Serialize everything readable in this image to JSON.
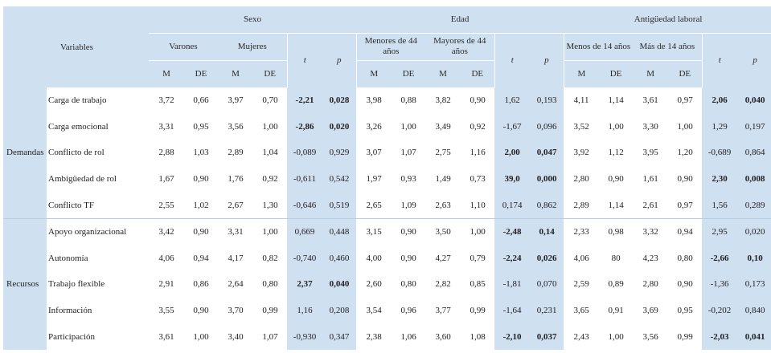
{
  "header": {
    "groups": {
      "sexo": "Sexo",
      "edad": "Edad",
      "antiguedad": "Antigüedad laboral"
    },
    "variables": "Variables",
    "sub": {
      "varones": "Varones",
      "mujeres": "Mujeres",
      "menores44": "Menores de 44 años",
      "mayores44": "Mayores de 44 años",
      "menos14": "Menos de 14 años",
      "mas14": "Más de 14 años"
    },
    "stat": {
      "m": "M",
      "de": "DE",
      "t": "t",
      "p": "p"
    }
  },
  "groups": {
    "demandas": "Demandas",
    "recursos": "Recursos"
  },
  "rows": [
    {
      "label": "Carga de trabajo",
      "v": [
        "3,72",
        "0,66",
        "3,97",
        "0,70",
        "-2,21",
        "0,028",
        "3,98",
        "0,88",
        "3,82",
        "0,90",
        "1,62",
        "0,193",
        "4,11",
        "1,14",
        "3,61",
        "0,97",
        "2,06",
        "0,040"
      ],
      "bold": [
        4,
        5,
        16,
        17
      ]
    },
    {
      "label": "Carga emocional",
      "v": [
        "3,31",
        "0,95",
        "3,56",
        "1,00",
        "-2,86",
        "0,020",
        "3,26",
        "1,00",
        "3,49",
        "0,92",
        "-1,67",
        "0,096",
        "3,52",
        "1,00",
        "3,30",
        "1,00",
        "1,29",
        "0,197"
      ],
      "bold": [
        4,
        5
      ]
    },
    {
      "label": "Conflicto de rol",
      "v": [
        "2,88",
        "1,03",
        "2,89",
        "1,04",
        "-0,089",
        "0,929",
        "3,07",
        "1,07",
        "2,75",
        "1,16",
        "2,00",
        "0,047",
        "3,92",
        "1,12",
        "3,95",
        "1,20",
        "-0,689",
        "0,864"
      ],
      "bold": [
        10,
        11
      ]
    },
    {
      "label": "Ambigüedad de rol",
      "v": [
        "1,67",
        "0,90",
        "1,76",
        "0,92",
        "-0,611",
        "0,542",
        "1,97",
        "0,93",
        "1,49",
        "0,73",
        "39,0",
        "0,000",
        "2,80",
        "0,90",
        "1,61",
        "0,90",
        "2,30",
        "0,008"
      ],
      "bold": [
        10,
        11,
        16,
        17
      ]
    },
    {
      "label": "Conflicto TF",
      "v": [
        "2,55",
        "1,02",
        "2,67",
        "1,30",
        "-0,646",
        "0,519",
        "2,65",
        "1,09",
        "2,63",
        "1,10",
        "0,174",
        "0,862",
        "2,89",
        "1,14",
        "2,61",
        "0,97",
        "1,56",
        "0,289"
      ],
      "bold": []
    },
    {
      "label": "Apoyo organizacional",
      "v": [
        "3,42",
        "0,90",
        "3,31",
        "1,00",
        "0,669",
        "0,448",
        "3,15",
        "0,90",
        "3,50",
        "1,00",
        "-2,48",
        "0,14",
        "2,33",
        "0,98",
        "3,32",
        "0,94",
        "2,95",
        "0,020"
      ],
      "bold": [
        10,
        11
      ]
    },
    {
      "label": "Autonomía",
      "v": [
        "4,06",
        "0,94",
        "4,17",
        "0,82",
        "-0,740",
        "0,460",
        "4,00",
        "0,90",
        "4,27",
        "0,79",
        "-2,24",
        "0,026",
        "4,06",
        "80",
        "4,23",
        "0,80",
        "-2,66",
        "0,10"
      ],
      "bold": [
        10,
        11,
        16,
        17
      ]
    },
    {
      "label": "Trabajo flexible",
      "v": [
        "2,91",
        "0,86",
        "2,64",
        "0,80",
        "2,37",
        "0,040",
        "2,60",
        "0,80",
        "2,82",
        "0,85",
        "-1,81",
        "0,070",
        "2,59",
        "0,89",
        "2,80",
        "0,90",
        "-1,36",
        "0,173"
      ],
      "bold": [
        4,
        5
      ]
    },
    {
      "label": "Información",
      "v": [
        "3,55",
        "0,90",
        "3,70",
        "0,99",
        "1,16",
        "0,208",
        "3,54",
        "0,96",
        "3,77",
        "0,99",
        "-1,64",
        "0,231",
        "3,65",
        "0,91",
        "3,69",
        "0,95",
        "-0,202",
        "0,840"
      ],
      "bold": []
    },
    {
      "label": "Participación",
      "v": [
        "3,61",
        "1,00",
        "3,40",
        "1,07",
        "-0,930",
        "0,347",
        "2,38",
        "1,06",
        "3,60",
        "1,08",
        "-2,10",
        "0,037",
        "2,43",
        "1,00",
        "3,56",
        "0,99",
        "-2,03",
        "0,041"
      ],
      "bold": [
        10,
        11,
        16,
        17
      ]
    }
  ]
}
